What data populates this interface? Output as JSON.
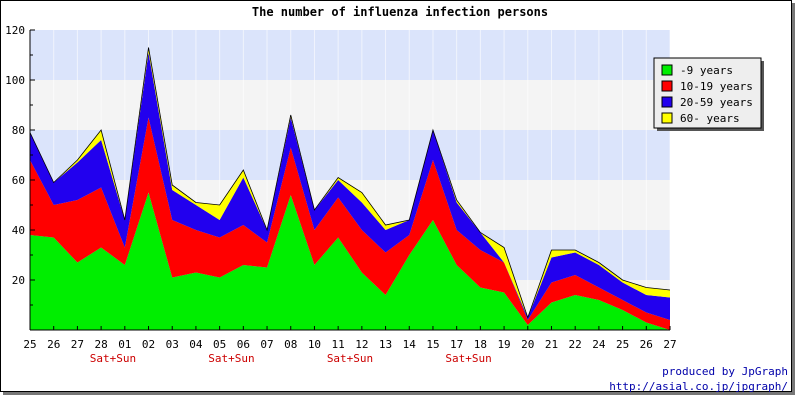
{
  "chart_data": {
    "type": "area",
    "stacked": true,
    "title": "The number of influenza infection persons",
    "xlabel": "",
    "ylabel": "",
    "ylim": [
      0,
      120
    ],
    "yticks": [
      20,
      40,
      60,
      80,
      100,
      120
    ],
    "x": [
      "25",
      "26",
      "27",
      "28",
      "01",
      "02",
      "03",
      "04",
      "05",
      "06",
      "07",
      "08",
      "10",
      "11",
      "12",
      "13",
      "14",
      "15",
      "17",
      "18",
      "19",
      "20",
      "21",
      "22",
      "24",
      "25",
      "26",
      "27"
    ],
    "weekend_label": "Sat+Sun",
    "weekend_after_index": [
      3,
      8,
      13,
      18
    ],
    "band_colors": [
      "#dbe4fb",
      "#f4f4f4"
    ],
    "legend_position": "top-right",
    "series": [
      {
        "name": "-9 years",
        "color": "#00ee00",
        "values": [
          38,
          37,
          27,
          33,
          26,
          55,
          21,
          23,
          21,
          26,
          25,
          54,
          26,
          37,
          23,
          14,
          30,
          44,
          26,
          17,
          15,
          2,
          11,
          14,
          12,
          8,
          3,
          0
        ]
      },
      {
        "name": "10-19 years",
        "color": "#ff0000",
        "values": [
          30,
          13,
          25,
          24,
          7,
          30,
          23,
          17,
          16,
          16,
          10,
          19,
          14,
          16,
          17,
          17,
          8,
          24,
          14,
          15,
          12,
          2,
          8,
          8,
          5,
          4,
          4,
          4
        ]
      },
      {
        "name": "20-59 years",
        "color": "#2200ee",
        "values": [
          11,
          9,
          15,
          19,
          11,
          26,
          12,
          10,
          7,
          19,
          5,
          12,
          8,
          7,
          11,
          9,
          6,
          12,
          11,
          7,
          0,
          1,
          10,
          9,
          9,
          7,
          7,
          9
        ]
      },
      {
        "name": "60- years",
        "color": "#ffff00",
        "values": [
          0,
          0,
          1,
          4,
          0,
          2,
          2,
          1,
          6,
          3,
          0,
          1,
          0,
          1,
          4,
          2,
          0,
          0,
          1,
          0,
          6,
          0,
          3,
          1,
          1,
          1,
          3,
          3
        ]
      }
    ]
  },
  "credit": {
    "line1": "produced by JpGraph",
    "line2": "http://asial.co.jp/jpgraph/"
  }
}
